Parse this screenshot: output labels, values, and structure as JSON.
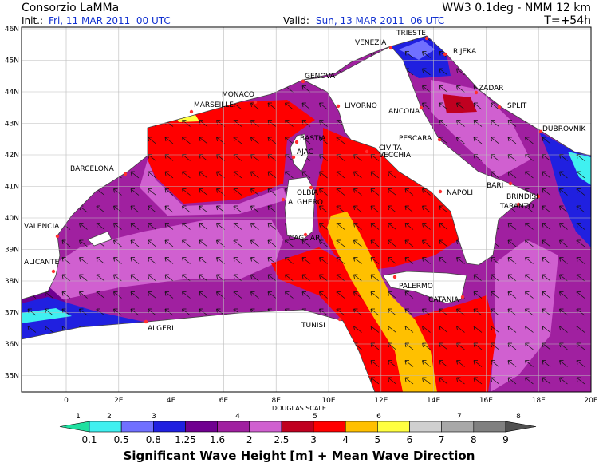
{
  "header": {
    "title": "Consorzio LaMMa",
    "init_label": "Init.:",
    "init": "Fri, 11 MAR 2011  00 UTC",
    "model": "WW3 0.1deg - NMM 12 km",
    "valid_label": "Valid:",
    "valid": "Sun, 13 MAR 2011  06 UTC",
    "lead": "T=+54h"
  },
  "map": {
    "lat_labels": [
      "46N",
      "45N",
      "44N",
      "43N",
      "42N",
      "41N",
      "40N",
      "39N",
      "38N",
      "37N",
      "36N",
      "35N"
    ],
    "lon_labels": [
      "0",
      "2E",
      "4E",
      "6E",
      "8E",
      "10E",
      "12E",
      "14E",
      "16E",
      "18E",
      "20E"
    ],
    "cities": [
      "TRIESTE",
      "VENEZIA",
      "RIJEKA",
      "GENOVA",
      "MONACO",
      "MARSEILLE",
      "LIVORNO",
      "ANCONA",
      "ZADAR",
      "SPLIT",
      "DUBROVNIK",
      "BASTIA",
      "AJAC",
      "PESCARA",
      "CIVITA",
      "VECCHIA",
      "BARCELONA",
      "OLBIA",
      "ALGHERO",
      "NAPOLI",
      "BARI",
      "BRINDISI",
      "TARANTO",
      "VALENCIA",
      "CAGLIARI",
      "ALICANTE",
      "PALERMO",
      "CATANIA",
      "TUNISI",
      "ALGERI"
    ]
  },
  "legend": {
    "douglas_title": "DOUGLAS SCALE",
    "douglas": [
      "1",
      "2",
      "3",
      "4",
      "5",
      "6",
      "7",
      "8"
    ],
    "values": [
      "0.1",
      "0.5",
      "0.8",
      "1.25",
      "1.6",
      "2",
      "2.5",
      "3",
      "4",
      "5",
      "6",
      "7",
      "8",
      "9"
    ],
    "caption": "Significant Wave Height [m] + Mean Wave Direction"
  }
}
